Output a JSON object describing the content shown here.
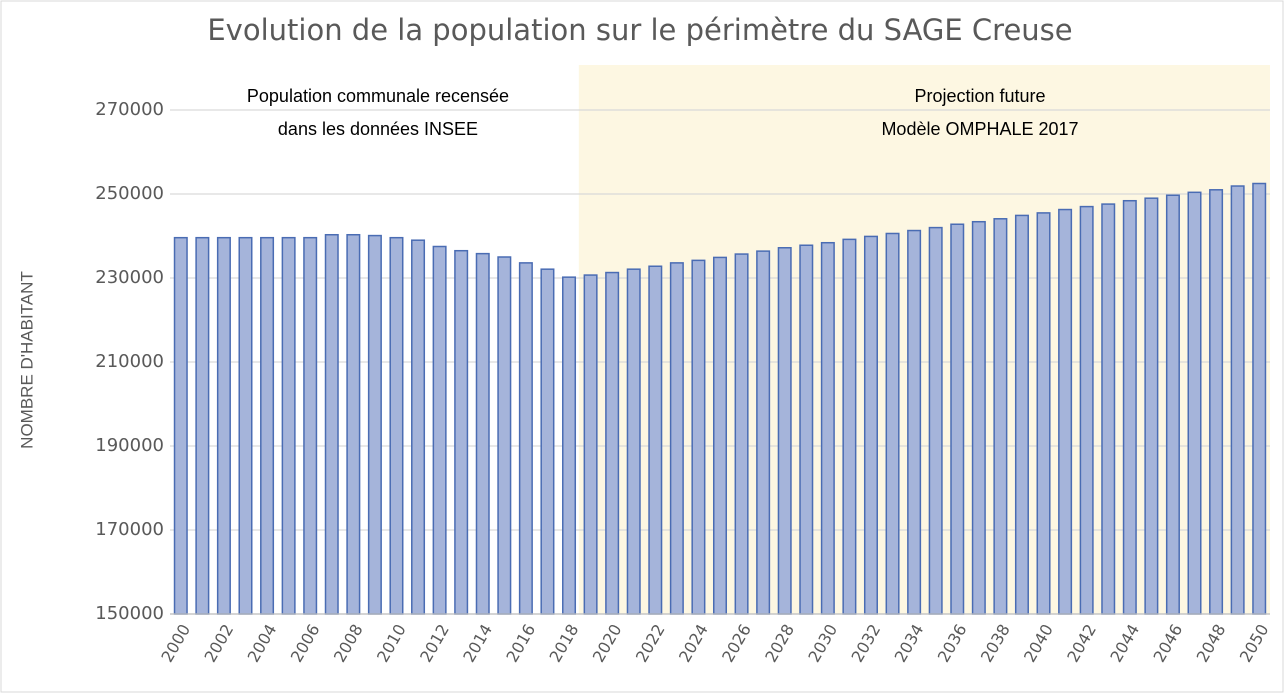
{
  "chart_data": {
    "type": "bar",
    "title": "Evolution de la population sur le périmètre du SAGE Creuse",
    "y_label": "NOMBRE D'HABITANT",
    "annotations": [
      "Population communale recensée",
      "dans les données INSEE",
      "Projection future",
      "Modèle OMPHALE 2017"
    ],
    "categories": [
      "2000",
      null,
      "2002",
      null,
      "2004",
      null,
      "2006",
      null,
      "2008",
      null,
      "2010",
      null,
      "2012",
      null,
      "2014",
      null,
      "2016",
      null,
      "2018",
      null,
      "2020",
      null,
      "2022",
      null,
      "2024",
      null,
      "2026",
      null,
      "2028",
      null,
      "2030",
      null,
      "2032",
      null,
      "2034",
      null,
      "2036",
      null,
      "2038",
      null,
      "2040",
      null,
      "2042",
      null,
      "2044",
      null,
      "2046",
      null,
      "2048",
      null,
      "2050"
    ],
    "values": [
      239600,
      239600,
      239600,
      239600,
      239600,
      239600,
      239600,
      240300,
      240300,
      240100,
      239600,
      239000,
      237500,
      236500,
      235800,
      235000,
      233600,
      232100,
      230200,
      230700,
      231300,
      232100,
      232800,
      233600,
      234200,
      234900,
      235700,
      236400,
      237200,
      237800,
      238400,
      239200,
      239900,
      240600,
      241300,
      242000,
      242800,
      243400,
      244100,
      244900,
      245500,
      246300,
      247000,
      247600,
      248400,
      249000,
      249700,
      250400,
      251000,
      251900,
      252500
    ],
    "color": "#a5b4da",
    "edge_color": "#4a6cb3",
    "ylim": [
      150000,
      280000
    ],
    "yticks": [
      150000,
      170000,
      190000,
      210000,
      230000,
      250000,
      270000
    ],
    "grid": true
  }
}
